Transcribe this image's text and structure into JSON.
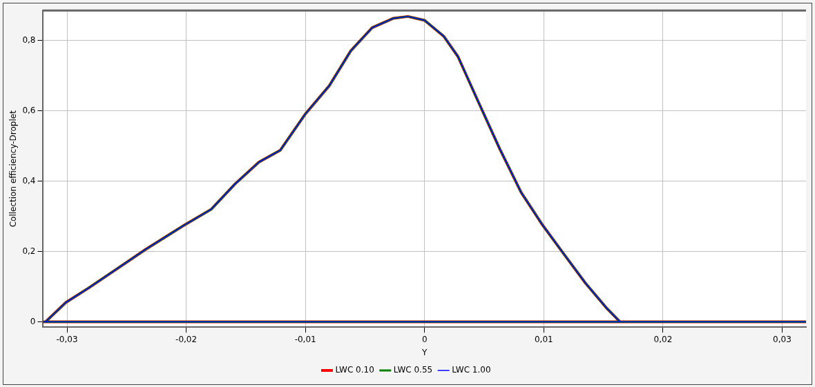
{
  "chart_data": {
    "type": "line",
    "xlabel": "Y",
    "ylabel": "Collection efficiency-Droplet",
    "x": [
      0.032,
      -0.032,
      -0.0318,
      -0.0301,
      -0.0282,
      -0.0258,
      -0.0234,
      -0.0203,
      -0.0179,
      -0.0159,
      -0.0139,
      -0.0121,
      -0.01,
      -0.008,
      -0.0062,
      -0.0044,
      -0.0026,
      -0.0014,
      0,
      0.0016,
      0.0028,
      0.0045,
      0.0063,
      0.0081,
      0.0099,
      0.0117,
      0.0135,
      0.0153,
      0.0164
    ],
    "series": [
      {
        "name": "LWC 0.10",
        "color": "#ff0000",
        "values": [
          0,
          0,
          0,
          0.055,
          0.096,
          0.151,
          0.206,
          0.272,
          0.32,
          0.392,
          0.454,
          0.488,
          0.591,
          0.671,
          0.77,
          0.836,
          0.863,
          0.868,
          0.857,
          0.812,
          0.754,
          0.626,
          0.492,
          0.368,
          0.275,
          0.192,
          0.11,
          0.038,
          0
        ]
      },
      {
        "name": "LWC 0.55",
        "color": "#008000",
        "values": [
          0,
          0,
          0,
          0.055,
          0.096,
          0.151,
          0.206,
          0.272,
          0.32,
          0.392,
          0.454,
          0.488,
          0.591,
          0.671,
          0.77,
          0.836,
          0.863,
          0.868,
          0.857,
          0.812,
          0.754,
          0.626,
          0.492,
          0.368,
          0.275,
          0.192,
          0.11,
          0.038,
          0
        ]
      },
      {
        "name": "LWC 1.00",
        "color": "#0000ff",
        "values": [
          0,
          0,
          0,
          0.055,
          0.096,
          0.151,
          0.206,
          0.272,
          0.32,
          0.392,
          0.454,
          0.488,
          0.591,
          0.671,
          0.77,
          0.836,
          0.863,
          0.868,
          0.857,
          0.812,
          0.754,
          0.626,
          0.492,
          0.368,
          0.275,
          0.192,
          0.11,
          0.038,
          0
        ]
      }
    ],
    "xlim": [
      -0.032,
      0.032
    ],
    "xticks": [
      {
        "value": -0.03,
        "label": "-0,03"
      },
      {
        "value": -0.02,
        "label": "-0,02"
      },
      {
        "value": -0.01,
        "label": "-0,01"
      },
      0,
      {
        "value": 0.01,
        "label": "0,01"
      },
      {
        "value": 0.02,
        "label": "0,02"
      },
      {
        "value": 0.03,
        "label": "0,03"
      }
    ],
    "ylim": [
      -0.015,
      0.885
    ],
    "yticks": [
      0,
      {
        "value": 0.2,
        "label": "0,2"
      },
      {
        "value": 0.4,
        "label": "0,4"
      },
      {
        "value": 0.6,
        "label": "0,6"
      },
      {
        "value": 0.8,
        "label": "0,8"
      }
    ],
    "grid": true,
    "legend": "bottom",
    "marker": "none",
    "line_style": "solid"
  }
}
